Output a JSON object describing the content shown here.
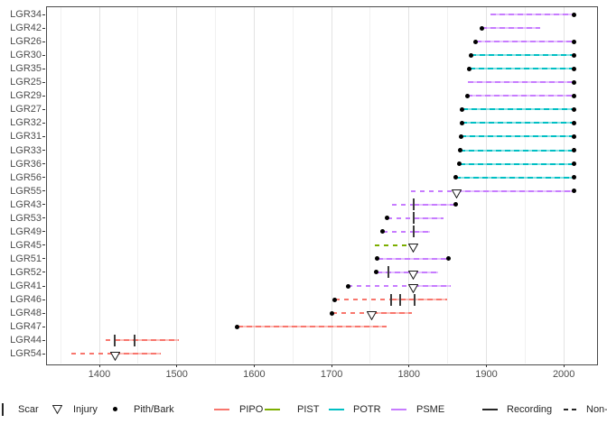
{
  "chart_data": {
    "type": "line",
    "subtype": "fire-history-demography-plot",
    "title": "",
    "xlabel": "",
    "ylabel": "",
    "x_axis": {
      "ticks": [
        1400,
        1500,
        1600,
        1700,
        1800,
        1900,
        2000
      ],
      "minor_ticks": [
        1350,
        1450,
        1550,
        1650,
        1750,
        1850,
        1950
      ],
      "range": [
        1331,
        2043
      ],
      "grid": "vertical-only"
    },
    "y_axis": {
      "categories": [
        "LGR34",
        "LGR42",
        "LGR26",
        "LGR30",
        "LGR35",
        "LGR25",
        "LGR29",
        "LGR27",
        "LGR32",
        "LGR31",
        "LGR33",
        "LGR36",
        "LGR56",
        "LGR55",
        "LGR43",
        "LGR53",
        "LGR49",
        "LGR45",
        "LGR51",
        "LGR52",
        "LGR41",
        "LGR46",
        "LGR48",
        "LGR47",
        "LGR44",
        "LGR54"
      ]
    },
    "series": [
      {
        "id": "LGR34",
        "species": "PSME",
        "pith": null,
        "bark": 2013,
        "scars": [],
        "injuries": [],
        "segments": [
          {
            "start": 1905,
            "end": 2013,
            "recording": true
          }
        ]
      },
      {
        "id": "LGR42",
        "species": "PSME",
        "pith": 1894,
        "bark": null,
        "scars": [],
        "injuries": [],
        "segments": [
          {
            "start": 1894,
            "end": 1969,
            "recording": true
          }
        ]
      },
      {
        "id": "LGR26",
        "species": "PSME",
        "pith": 1886,
        "bark": 2013,
        "scars": [],
        "injuries": [],
        "segments": [
          {
            "start": 1886,
            "end": 2013,
            "recording": true
          }
        ]
      },
      {
        "id": "LGR30",
        "species": "POTR",
        "pith": 1880,
        "bark": 2013,
        "scars": [],
        "injuries": [],
        "segments": [
          {
            "start": 1880,
            "end": 2013,
            "recording": true
          }
        ]
      },
      {
        "id": "LGR35",
        "species": "POTR",
        "pith": 1878,
        "bark": 2013,
        "scars": [],
        "injuries": [],
        "segments": [
          {
            "start": 1878,
            "end": 2013,
            "recording": true
          }
        ]
      },
      {
        "id": "LGR25",
        "species": "PSME",
        "pith": null,
        "bark": 2013,
        "scars": [],
        "injuries": [],
        "segments": [
          {
            "start": 1876,
            "end": 2013,
            "recording": true
          }
        ]
      },
      {
        "id": "LGR29",
        "species": "PSME",
        "pith": 1875,
        "bark": 2013,
        "scars": [],
        "injuries": [],
        "segments": [
          {
            "start": 1875,
            "end": 2013,
            "recording": true
          }
        ]
      },
      {
        "id": "LGR27",
        "species": "POTR",
        "pith": 1869,
        "bark": 2013,
        "scars": [],
        "injuries": [],
        "segments": [
          {
            "start": 1869,
            "end": 2013,
            "recording": true
          }
        ]
      },
      {
        "id": "LGR32",
        "species": "POTR",
        "pith": 1868,
        "bark": 2013,
        "scars": [],
        "injuries": [],
        "segments": [
          {
            "start": 1868,
            "end": 2013,
            "recording": true
          }
        ]
      },
      {
        "id": "LGR31",
        "species": "POTR",
        "pith": 1867,
        "bark": 2013,
        "scars": [],
        "injuries": [],
        "segments": [
          {
            "start": 1867,
            "end": 2013,
            "recording": true
          }
        ]
      },
      {
        "id": "LGR33",
        "species": "POTR",
        "pith": 1866,
        "bark": 2013,
        "scars": [],
        "injuries": [],
        "segments": [
          {
            "start": 1866,
            "end": 2013,
            "recording": true
          }
        ]
      },
      {
        "id": "LGR36",
        "species": "POTR",
        "pith": 1865,
        "bark": 2013,
        "scars": [],
        "injuries": [],
        "segments": [
          {
            "start": 1865,
            "end": 2013,
            "recording": true
          }
        ]
      },
      {
        "id": "LGR56",
        "species": "POTR",
        "pith": 1860,
        "bark": 2013,
        "scars": [],
        "injuries": [],
        "segments": [
          {
            "start": 1860,
            "end": 2013,
            "recording": true
          }
        ]
      },
      {
        "id": "LGR55",
        "species": "PSME",
        "pith": null,
        "bark": 2013,
        "scars": [],
        "injuries": [
          1861
        ],
        "segments": [
          {
            "start": 1802,
            "end": 1861,
            "recording": false
          },
          {
            "start": 1861,
            "end": 2013,
            "recording": true
          }
        ]
      },
      {
        "id": "LGR43",
        "species": "PSME",
        "pith": null,
        "bark": 1860,
        "scars": [
          1806
        ],
        "injuries": [],
        "segments": [
          {
            "start": 1778,
            "end": 1806,
            "recording": false
          },
          {
            "start": 1806,
            "end": 1860,
            "recording": true
          }
        ]
      },
      {
        "id": "LGR53",
        "species": "PSME",
        "pith": 1772,
        "bark": null,
        "scars": [
          1806
        ],
        "injuries": [],
        "segments": [
          {
            "start": 1772,
            "end": 1806,
            "recording": false
          },
          {
            "start": 1806,
            "end": 1845,
            "recording": true
          }
        ]
      },
      {
        "id": "LGR49",
        "species": "PSME",
        "pith": 1766,
        "bark": null,
        "scars": [
          1806
        ],
        "injuries": [],
        "segments": [
          {
            "start": 1766,
            "end": 1806,
            "recording": false
          },
          {
            "start": 1806,
            "end": 1827,
            "recording": true
          }
        ]
      },
      {
        "id": "LGR45",
        "species": "PIST",
        "pith": null,
        "bark": null,
        "scars": [],
        "injuries": [
          1805
        ],
        "segments": [
          {
            "start": 1756,
            "end": 1805,
            "recording": false
          }
        ]
      },
      {
        "id": "LGR51",
        "species": "PSME",
        "pith": 1759,
        "bark": 1851,
        "scars": [],
        "injuries": [],
        "segments": [
          {
            "start": 1759,
            "end": 1851,
            "recording": true
          }
        ]
      },
      {
        "id": "LGR52",
        "species": "PSME",
        "pith": 1758,
        "bark": null,
        "scars": [
          1773
        ],
        "injuries": [
          1806
        ],
        "segments": [
          {
            "start": 1758,
            "end": 1838,
            "recording": true
          }
        ]
      },
      {
        "id": "LGR41",
        "species": "PSME",
        "pith": 1721,
        "bark": null,
        "scars": [],
        "injuries": [
          1806
        ],
        "segments": [
          {
            "start": 1721,
            "end": 1806,
            "recording": false
          },
          {
            "start": 1806,
            "end": 1854,
            "recording": true
          }
        ]
      },
      {
        "id": "LGR46",
        "species": "PIPO",
        "pith": 1704,
        "bark": null,
        "scars": [
          1777,
          1788,
          1807
        ],
        "injuries": [],
        "segments": [
          {
            "start": 1704,
            "end": 1777,
            "recording": false
          },
          {
            "start": 1777,
            "end": 1849,
            "recording": true
          }
        ]
      },
      {
        "id": "LGR48",
        "species": "PIPO",
        "pith": 1701,
        "bark": null,
        "scars": [],
        "injuries": [
          1752
        ],
        "segments": [
          {
            "start": 1701,
            "end": 1752,
            "recording": false
          },
          {
            "start": 1752,
            "end": 1804,
            "recording": true
          }
        ]
      },
      {
        "id": "LGR47",
        "species": "PIPO",
        "pith": 1578,
        "bark": null,
        "scars": [],
        "injuries": [],
        "segments": [
          {
            "start": 1578,
            "end": 1771,
            "recording": true
          }
        ]
      },
      {
        "id": "LGR44",
        "species": "PIPO",
        "pith": null,
        "bark": null,
        "scars": [
          1420,
          1446
        ],
        "injuries": [],
        "segments": [
          {
            "start": 1408,
            "end": 1420,
            "recording": false
          },
          {
            "start": 1420,
            "end": 1503,
            "recording": true
          }
        ]
      },
      {
        "id": "LGR54",
        "species": "PIPO",
        "pith": null,
        "bark": null,
        "scars": [],
        "injuries": [
          1420
        ],
        "segments": [
          {
            "start": 1364,
            "end": 1420,
            "recording": false
          },
          {
            "start": 1420,
            "end": 1479,
            "recording": true
          }
        ]
      }
    ]
  },
  "colors": {
    "PIPO": "#F8766D",
    "PIST": "#7CAE00",
    "POTR": "#00BFC4",
    "PSME": "#C77CFF",
    "marks": "#262626",
    "axis_text": "#4d4d4d"
  },
  "legend": {
    "items": [
      {
        "kind": "scar",
        "label": "Scar"
      },
      {
        "kind": "injury",
        "label": "Injury"
      },
      {
        "kind": "dot",
        "label": "Pith/Bark"
      },
      {
        "kind": "species",
        "label": "PIPO",
        "species": "PIPO"
      },
      {
        "kind": "species",
        "label": "PIST",
        "species": "PIST"
      },
      {
        "kind": "species",
        "label": "POTR",
        "species": "POTR"
      },
      {
        "kind": "species",
        "label": "PSME",
        "species": "PSME"
      },
      {
        "kind": "line",
        "label": "Recording",
        "style": "solid"
      },
      {
        "kind": "line",
        "label": "Non-recording",
        "style": "dashed"
      }
    ]
  }
}
